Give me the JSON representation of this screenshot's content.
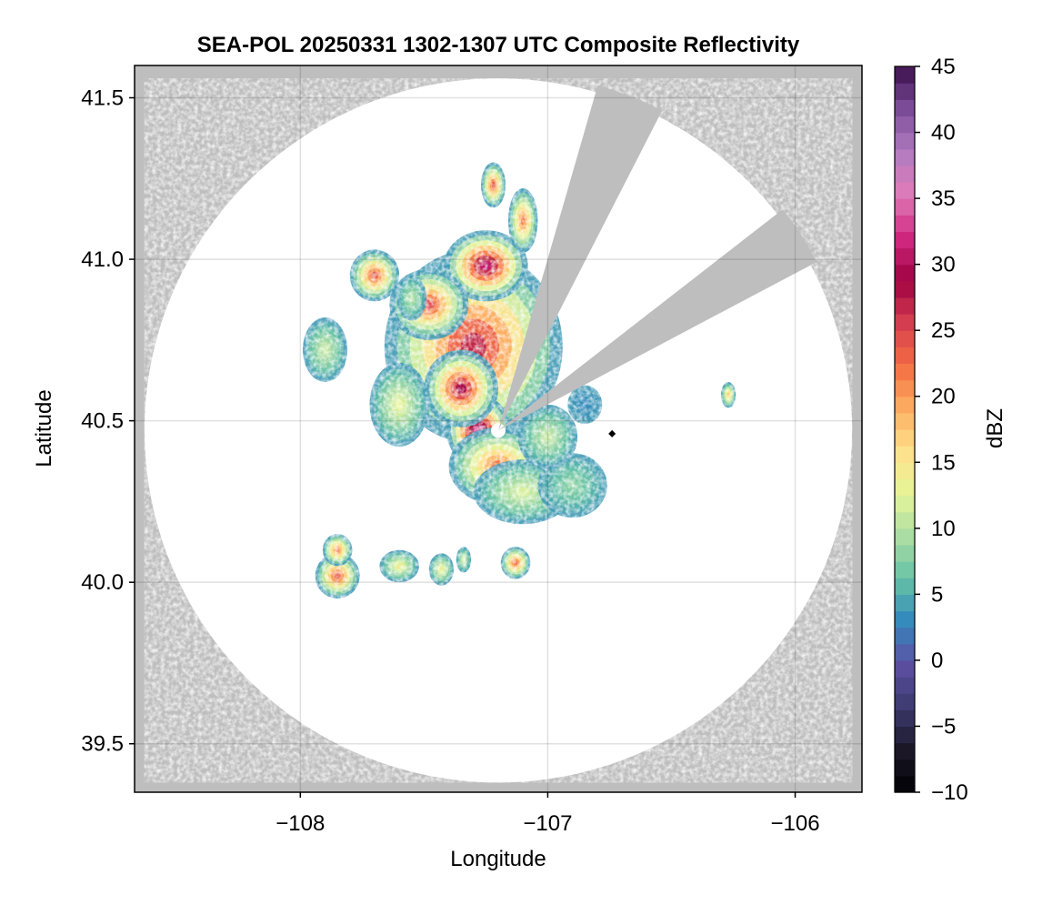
{
  "chart_data": {
    "type": "heatmap",
    "title": "SEA-POL 20250331 1302-1307 UTC Composite Reflectivity",
    "xlabel": "Longitude",
    "ylabel": "Latitude",
    "xlim": [
      -108.67,
      -105.73
    ],
    "ylim": [
      39.35,
      41.6
    ],
    "xticks": [
      -108,
      -107,
      -106
    ],
    "xtick_labels": [
      "−108",
      "−107",
      "−106"
    ],
    "yticks": [
      39.5,
      40.0,
      40.5,
      41.0,
      41.5
    ],
    "ytick_labels": [
      "39.5",
      "40.0",
      "40.5",
      "41.0",
      "41.5"
    ],
    "grid": true,
    "radar": {
      "center_lon": -107.2,
      "center_lat": 40.47,
      "range_lat_deg": 1.09,
      "range_lon_deg": 1.43,
      "blocked_sectors_deg_from_north": [
        [
          16,
          27
        ],
        [
          52,
          62
        ]
      ],
      "site_marker": {
        "lon": -106.74,
        "lat": 40.46
      }
    },
    "colorbar": {
      "label": "dBZ",
      "min": -10,
      "max": 45,
      "step": 1.25,
      "ticks": [
        -10,
        -5,
        0,
        5,
        10,
        15,
        20,
        25,
        30,
        35,
        40,
        45
      ],
      "tick_labels": [
        "−10",
        "−5",
        "0",
        "5",
        "10",
        "15",
        "20",
        "25",
        "30",
        "35",
        "40",
        "45"
      ],
      "colormap": [
        "#000004",
        "#1c1828",
        "#3c3a6e",
        "#5e4fa2",
        "#3288bd",
        "#66c2a5",
        "#abdda4",
        "#e6f598",
        "#fee08b",
        "#fdae61",
        "#f46d43",
        "#d53e4f",
        "#9e0142",
        "#d0287f",
        "#e07bb8",
        "#b07cc0",
        "#7d4d9a",
        "#3b0f4b"
      ]
    },
    "echoes": [
      {
        "lon": -107.3,
        "lat": 40.73,
        "rlon": 0.36,
        "rlat": 0.3,
        "peak": 27
      },
      {
        "lon": -107.25,
        "lat": 40.98,
        "rlon": 0.17,
        "rlat": 0.11,
        "peak": 31
      },
      {
        "lon": -107.28,
        "lat": 40.47,
        "rlon": 0.13,
        "rlat": 0.11,
        "peak": 34
      },
      {
        "lon": -107.35,
        "lat": 40.6,
        "rlon": 0.15,
        "rlat": 0.12,
        "peak": 29
      },
      {
        "lon": -107.48,
        "lat": 40.86,
        "rlon": 0.16,
        "rlat": 0.11,
        "peak": 25
      },
      {
        "lon": -107.7,
        "lat": 40.95,
        "rlon": 0.1,
        "rlat": 0.08,
        "peak": 24
      },
      {
        "lon": -107.2,
        "lat": 40.36,
        "rlon": 0.2,
        "rlat": 0.12,
        "peak": 22
      },
      {
        "lon": -107.1,
        "lat": 40.28,
        "rlon": 0.2,
        "rlat": 0.1,
        "peak": 12
      },
      {
        "lon": -106.9,
        "lat": 40.3,
        "rlon": 0.14,
        "rlat": 0.1,
        "peak": 8
      },
      {
        "lon": -107.0,
        "lat": 40.45,
        "rlon": 0.12,
        "rlat": 0.1,
        "peak": 11
      },
      {
        "lon": -107.6,
        "lat": 40.55,
        "rlon": 0.12,
        "rlat": 0.13,
        "peak": 13
      },
      {
        "lon": -107.9,
        "lat": 40.72,
        "rlon": 0.09,
        "rlat": 0.1,
        "peak": 11
      },
      {
        "lon": -107.55,
        "lat": 40.88,
        "rlon": 0.06,
        "rlat": 0.07,
        "peak": 10
      },
      {
        "lon": -107.1,
        "lat": 41.12,
        "rlon": 0.06,
        "rlat": 0.1,
        "peak": 22
      },
      {
        "lon": -107.22,
        "lat": 41.23,
        "rlon": 0.05,
        "rlat": 0.07,
        "peak": 24
      },
      {
        "lon": -106.85,
        "lat": 40.55,
        "rlon": 0.07,
        "rlat": 0.06,
        "peak": 3
      },
      {
        "lon": -106.27,
        "lat": 40.58,
        "rlon": 0.03,
        "rlat": 0.04,
        "peak": 18
      },
      {
        "lon": -107.85,
        "lat": 40.02,
        "rlon": 0.09,
        "rlat": 0.07,
        "peak": 24
      },
      {
        "lon": -107.85,
        "lat": 40.1,
        "rlon": 0.06,
        "rlat": 0.05,
        "peak": 22
      },
      {
        "lon": -107.6,
        "lat": 40.05,
        "rlon": 0.08,
        "rlat": 0.05,
        "peak": 14
      },
      {
        "lon": -107.43,
        "lat": 40.04,
        "rlon": 0.05,
        "rlat": 0.05,
        "peak": 14
      },
      {
        "lon": -107.13,
        "lat": 40.06,
        "rlon": 0.06,
        "rlat": 0.05,
        "peak": 23
      },
      {
        "lon": -107.34,
        "lat": 40.07,
        "rlon": 0.03,
        "rlat": 0.04,
        "peak": 12
      }
    ]
  }
}
